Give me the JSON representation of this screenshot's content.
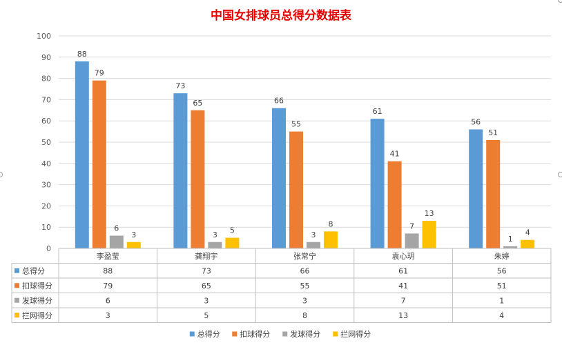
{
  "chart_data": {
    "type": "bar",
    "title": "中国女排球员总得分数据表",
    "categories": [
      "李盈莹",
      "龚翔宇",
      "张常宁",
      "袁心玥",
      "朱婷"
    ],
    "series": [
      {
        "name": "总得分",
        "color": "#5B9BD5",
        "values": [
          88,
          73,
          66,
          61,
          56
        ]
      },
      {
        "name": "扣球得分",
        "color": "#ED7D31",
        "values": [
          79,
          65,
          55,
          41,
          51
        ]
      },
      {
        "name": "发球得分",
        "color": "#A5A5A5",
        "values": [
          6,
          3,
          3,
          7,
          1
        ]
      },
      {
        "name": "拦网得分",
        "color": "#FFC000",
        "values": [
          3,
          5,
          8,
          13,
          4
        ]
      }
    ],
    "ylim": [
      0,
      100
    ],
    "yticks": [
      0,
      10,
      20,
      30,
      40,
      50,
      60,
      70,
      80,
      90,
      100
    ],
    "grid": true,
    "data_labels": true,
    "data_table": true,
    "legend_position": "bottom",
    "title_color": "#E60000"
  }
}
